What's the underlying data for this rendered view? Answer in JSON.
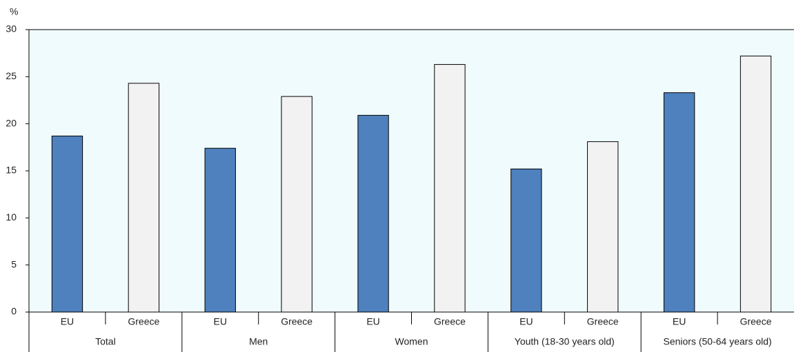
{
  "chart_data": {
    "type": "bar",
    "y_label": "%",
    "groups": [
      "Total",
      "Men",
      "Women",
      "Youth (18-30 years old)",
      "Seniors (50-64 years old)"
    ],
    "series": [
      {
        "name": "EU",
        "color": "#4e81bd",
        "values": [
          18.7,
          17.4,
          20.9,
          15.2,
          23.3
        ]
      },
      {
        "name": "Greece",
        "color": "#f2f2f2",
        "values": [
          24.3,
          22.9,
          26.3,
          18.1,
          27.2
        ]
      }
    ],
    "ylim": [
      0,
      30
    ],
    "yticks": [
      0,
      5,
      10,
      15,
      20,
      25,
      30
    ],
    "grid": false
  }
}
